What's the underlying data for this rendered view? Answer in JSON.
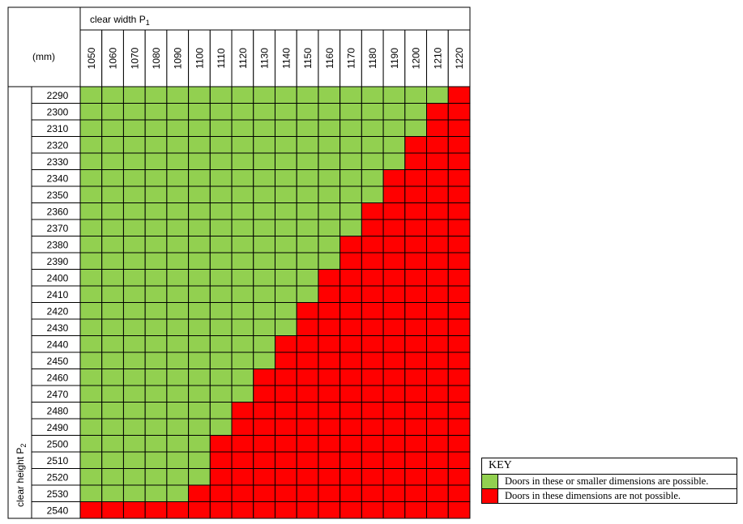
{
  "header": {
    "units": "(mm)",
    "width_label": "clear width P",
    "width_sub": "1",
    "height_label": "clear height P",
    "height_sub": "2"
  },
  "colors": {
    "possible": "#92d050",
    "not_possible": "#ff0000",
    "grid": "#000000"
  },
  "chart_data": {
    "type": "table",
    "widths": [
      1050,
      1060,
      1070,
      1080,
      1090,
      1100,
      1110,
      1120,
      1130,
      1140,
      1150,
      1160,
      1170,
      1180,
      1190,
      1200,
      1210,
      1220
    ],
    "heights": [
      2290,
      2300,
      2310,
      2320,
      2330,
      2340,
      2350,
      2360,
      2370,
      2380,
      2390,
      2400,
      2410,
      2420,
      2430,
      2440,
      2450,
      2460,
      2470,
      2480,
      2490,
      2500,
      2510,
      2520,
      2530,
      2540
    ],
    "possible_count_per_height": [
      17,
      16,
      16,
      15,
      15,
      14,
      14,
      13,
      13,
      12,
      12,
      11,
      11,
      10,
      10,
      9,
      9,
      8,
      8,
      7,
      7,
      6,
      6,
      6,
      5,
      0
    ]
  },
  "key": {
    "title": "KEY",
    "possible": "Doors in these or smaller dimensions are possible.",
    "not_possible": "Doors in these dimensions are not possible."
  }
}
